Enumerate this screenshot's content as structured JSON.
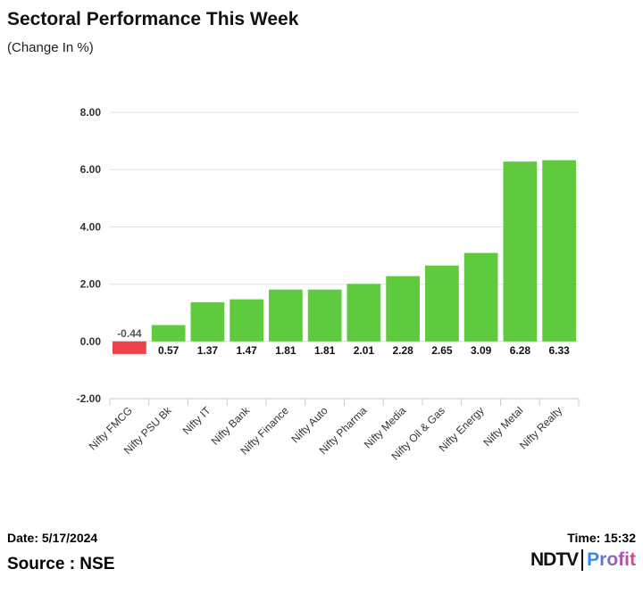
{
  "chart_data": {
    "type": "bar",
    "title": "Sectoral Performance This Week",
    "subtitle": "(Change In %)",
    "categories": [
      "Nifty FMCG",
      "Nifty PSU Bk",
      "Nifty IT",
      "Nifty Bank",
      "Nifty Finance",
      "Nifty Auto",
      "Nifty Pharma",
      "Nifty Media",
      "Nifty Oil & Gas",
      "Nifty Energy",
      "Nifty Metal",
      "Nifty Realty"
    ],
    "values": [
      -0.44,
      0.57,
      1.37,
      1.47,
      1.81,
      1.81,
      2.01,
      2.28,
      2.65,
      3.09,
      6.28,
      6.33
    ],
    "data_labels": [
      "-0.44",
      "0.57",
      "1.37",
      "1.47",
      "1.81",
      "1.81",
      "2.01",
      "2.28",
      "2.65",
      "3.09",
      "6.28",
      "6.33"
    ],
    "yticks": [
      "-2.00",
      "0.00",
      "2.00",
      "4.00",
      "6.00",
      "8.00"
    ],
    "ytick_values": [
      -2,
      0,
      2,
      4,
      6,
      8
    ],
    "ylim": [
      -2,
      8
    ],
    "grid": true,
    "colors": {
      "positive": "#5ecb3f",
      "negative": "#ee4149"
    }
  },
  "footer": {
    "date": "Date: 5/17/2024",
    "time": "Time: 15:32",
    "source": "Source : NSE",
    "logo_ndtv": "NDTV",
    "logo_profit": "Profit"
  }
}
